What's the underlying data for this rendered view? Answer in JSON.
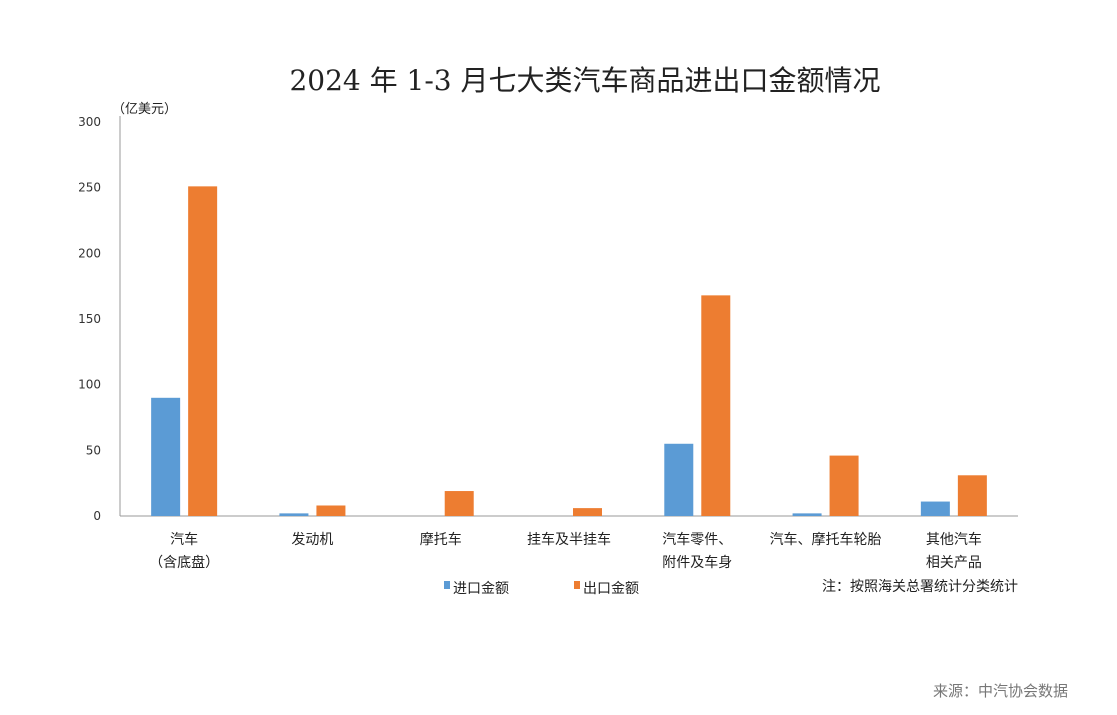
{
  "chart_data": {
    "type": "bar",
    "title": "2024 年 1-3 月七大类汽车商品进出口金额情况",
    "unit": "（亿美元）",
    "ylim": [
      0,
      300
    ],
    "yticks": [
      0,
      50,
      100,
      150,
      200,
      250,
      300
    ],
    "categories": [
      [
        "汽车",
        "（含底盘）"
      ],
      [
        "发动机"
      ],
      [
        "摩托车"
      ],
      [
        "挂车及半挂车"
      ],
      [
        "汽车零件、",
        "附件及车身"
      ],
      [
        "汽车、摩托车轮胎"
      ],
      [
        "其他汽车",
        "相关产品"
      ]
    ],
    "series": [
      {
        "name": "进口金额",
        "color": "#5B9BD5",
        "values": [
          90,
          2,
          0,
          0,
          55,
          2,
          11
        ]
      },
      {
        "name": "出口金额",
        "color": "#ED7D31",
        "values": [
          251,
          8,
          19,
          6,
          168,
          46,
          31
        ]
      }
    ],
    "grid": false,
    "legend": "bottom"
  },
  "note": "注：按照海关总署统计分类统计",
  "source": "来源：中汽协会数据"
}
